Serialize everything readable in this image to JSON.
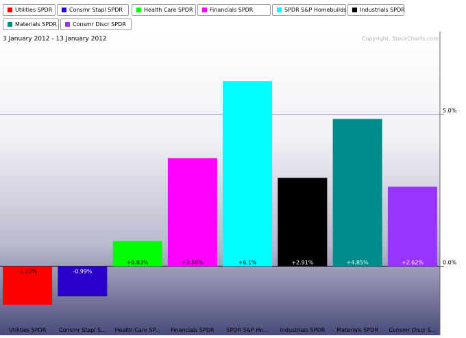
{
  "legend": [
    {
      "label": "Utilities SPDR",
      "color": "#ff0000"
    },
    {
      "label": "Consmr Stapl SPDR",
      "color": "#2a00cc"
    },
    {
      "label": "Health Care SPDR",
      "color": "#00ff00"
    },
    {
      "label": "Financials SPDR",
      "color": "#ff00ff"
    },
    {
      "label": "SPDR S&P Homebuilds",
      "color": "#00ffff"
    },
    {
      "label": "Industrials SPDR",
      "color": "#000000"
    },
    {
      "label": "Materials SPDR",
      "color": "#008b8b"
    },
    {
      "label": "Consmr Discr SPDR",
      "color": "#9933ff"
    }
  ],
  "header": {
    "date_range": "3 January 2012 - 13 January 2012",
    "copyright": "Copyright, StockCharts.com"
  },
  "chart_data": {
    "type": "bar",
    "categories": [
      "Utilities SPDR",
      "Consmr Stapl S...",
      "Health Care SP...",
      "Financials SPDR",
      "SPDR S&P Ho...",
      "Industrials SPDR",
      "Materials SPDR",
      "Consmr Discr S..."
    ],
    "values": [
      -1.27,
      -0.99,
      0.83,
      3.56,
      6.1,
      2.91,
      4.85,
      2.62
    ],
    "data_labels": [
      "-1.27%",
      "-0.99%",
      "+0.83%",
      "+3.56%",
      "+6.1%",
      "+2.91%",
      "+4.85%",
      "+2.62%"
    ],
    "colors": [
      "#ff0000",
      "#2a00cc",
      "#00ff00",
      "#ff00ff",
      "#00ffff",
      "#000000",
      "#008b8b",
      "#9933ff"
    ],
    "label_colors": [
      "#000000",
      "#ffffff",
      "#000000",
      "#000000",
      "#000000",
      "#ffffff",
      "#ffffff",
      "#ffffff"
    ],
    "y_ticks": [
      {
        "value": 5,
        "label": "5.0%"
      },
      {
        "value": 0,
        "label": "0.0%"
      }
    ],
    "ylim": [
      -2.0,
      7.3
    ],
    "grid": true
  }
}
